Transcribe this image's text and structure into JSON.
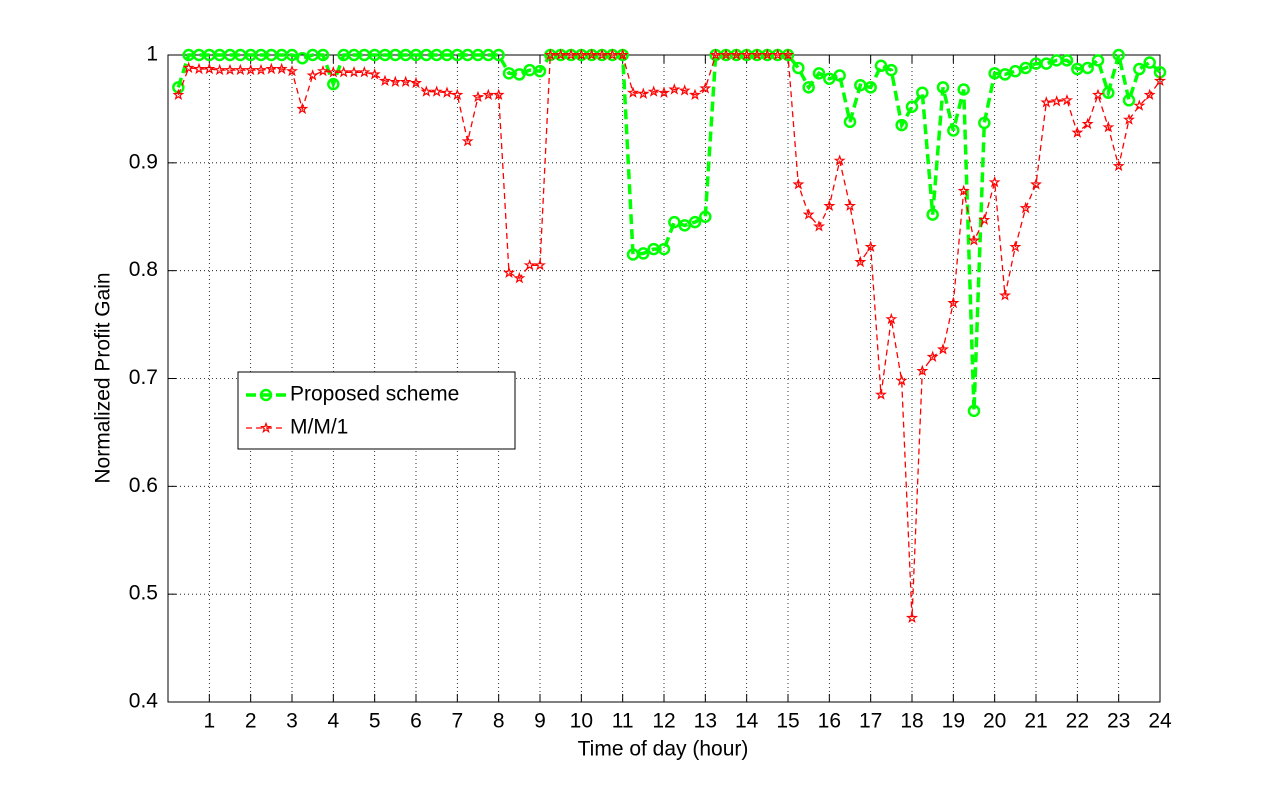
{
  "chart_data": {
    "type": "line",
    "xlabel": "Time of day (hour)",
    "ylabel": "Normalized Profit Gain",
    "x": [
      0.25,
      0.5,
      0.75,
      1,
      1.25,
      1.5,
      1.75,
      2,
      2.25,
      2.5,
      2.75,
      3,
      3.25,
      3.5,
      3.75,
      4,
      4.25,
      4.5,
      4.75,
      5,
      5.25,
      5.5,
      5.75,
      6,
      6.25,
      6.5,
      6.75,
      7,
      7.25,
      7.5,
      7.75,
      8,
      8.25,
      8.5,
      8.75,
      9,
      9.25,
      9.5,
      9.75,
      10,
      10.25,
      10.5,
      10.75,
      11,
      11.25,
      11.5,
      11.75,
      12,
      12.25,
      12.5,
      12.75,
      13,
      13.25,
      13.5,
      13.75,
      14,
      14.25,
      14.5,
      14.75,
      15,
      15.25,
      15.5,
      15.75,
      16,
      16.25,
      16.5,
      16.75,
      17,
      17.25,
      17.5,
      17.75,
      18,
      18.25,
      18.5,
      18.75,
      19,
      19.25,
      19.5,
      19.75,
      20,
      20.25,
      20.5,
      20.75,
      21,
      21.25,
      21.5,
      21.75,
      22,
      22.25,
      22.5,
      22.75,
      23,
      23.25,
      23.5,
      23.75,
      24
    ],
    "series": [
      {
        "name": "Proposed scheme",
        "color": "#00ff00",
        "marker": "circle",
        "values": [
          0.97,
          1,
          1,
          1,
          1,
          1,
          1,
          1,
          1,
          1,
          1,
          1,
          0.997,
          1,
          1,
          0.973,
          1,
          1,
          1,
          1,
          1,
          1,
          1,
          1,
          1,
          1,
          1,
          1,
          1,
          1,
          1,
          1,
          0.983,
          0.982,
          0.986,
          0.985,
          1,
          1,
          1,
          1,
          1,
          1,
          1,
          1,
          0.815,
          0.816,
          0.82,
          0.82,
          0.845,
          0.842,
          0.845,
          0.85,
          1,
          1,
          1,
          1,
          1,
          1,
          1,
          1,
          0.988,
          0.97,
          0.983,
          0.978,
          0.981,
          0.938,
          0.972,
          0.97,
          0.99,
          0.986,
          0.935,
          0.952,
          0.965,
          0.852,
          0.97,
          0.93,
          0.968,
          0.67,
          0.937,
          0.983,
          0.982,
          0.985,
          0.988,
          0.992,
          0.992,
          0.995,
          0.995,
          0.987,
          0.988,
          0.995,
          0.965,
          1,
          0.958,
          0.987,
          0.993,
          0.984
        ]
      },
      {
        "name": "M/M/1",
        "color": "#ff0000",
        "marker": "star",
        "values": [
          0.963,
          0.988,
          0.987,
          0.987,
          0.986,
          0.986,
          0.986,
          0.986,
          0.986,
          0.987,
          0.987,
          0.985,
          0.95,
          0.981,
          0.985,
          0.984,
          0.984,
          0.984,
          0.984,
          0.982,
          0.976,
          0.975,
          0.975,
          0.974,
          0.966,
          0.966,
          0.965,
          0.963,
          0.92,
          0.961,
          0.963,
          0.963,
          0.798,
          0.793,
          0.805,
          0.805,
          1,
          1,
          1,
          1,
          1,
          1,
          1,
          1,
          0.965,
          0.964,
          0.966,
          0.965,
          0.968,
          0.967,
          0.963,
          0.969,
          1,
          1,
          1,
          1,
          1,
          1,
          1,
          1,
          0.88,
          0.852,
          0.841,
          0.86,
          0.902,
          0.86,
          0.808,
          0.822,
          0.685,
          0.755,
          0.698,
          0.478,
          0.707,
          0.72,
          0.727,
          0.77,
          0.874,
          0.828,
          0.847,
          0.882,
          0.777,
          0.822,
          0.858,
          0.88,
          0.956,
          0.957,
          0.958,
          0.928,
          0.936,
          0.963,
          0.933,
          0.897,
          0.94,
          0.953,
          0.963,
          0.976
        ]
      }
    ],
    "xlim": [
      0,
      24
    ],
    "xticks": [
      1,
      2,
      3,
      4,
      5,
      6,
      7,
      8,
      9,
      10,
      11,
      12,
      13,
      14,
      15,
      16,
      17,
      18,
      19,
      20,
      21,
      22,
      23,
      24
    ],
    "ylim": [
      0.4,
      1
    ],
    "yticks": [
      0.4,
      0.5,
      0.6,
      0.7,
      0.8,
      0.9,
      1
    ],
    "grid": true,
    "legend": "middle-left"
  }
}
